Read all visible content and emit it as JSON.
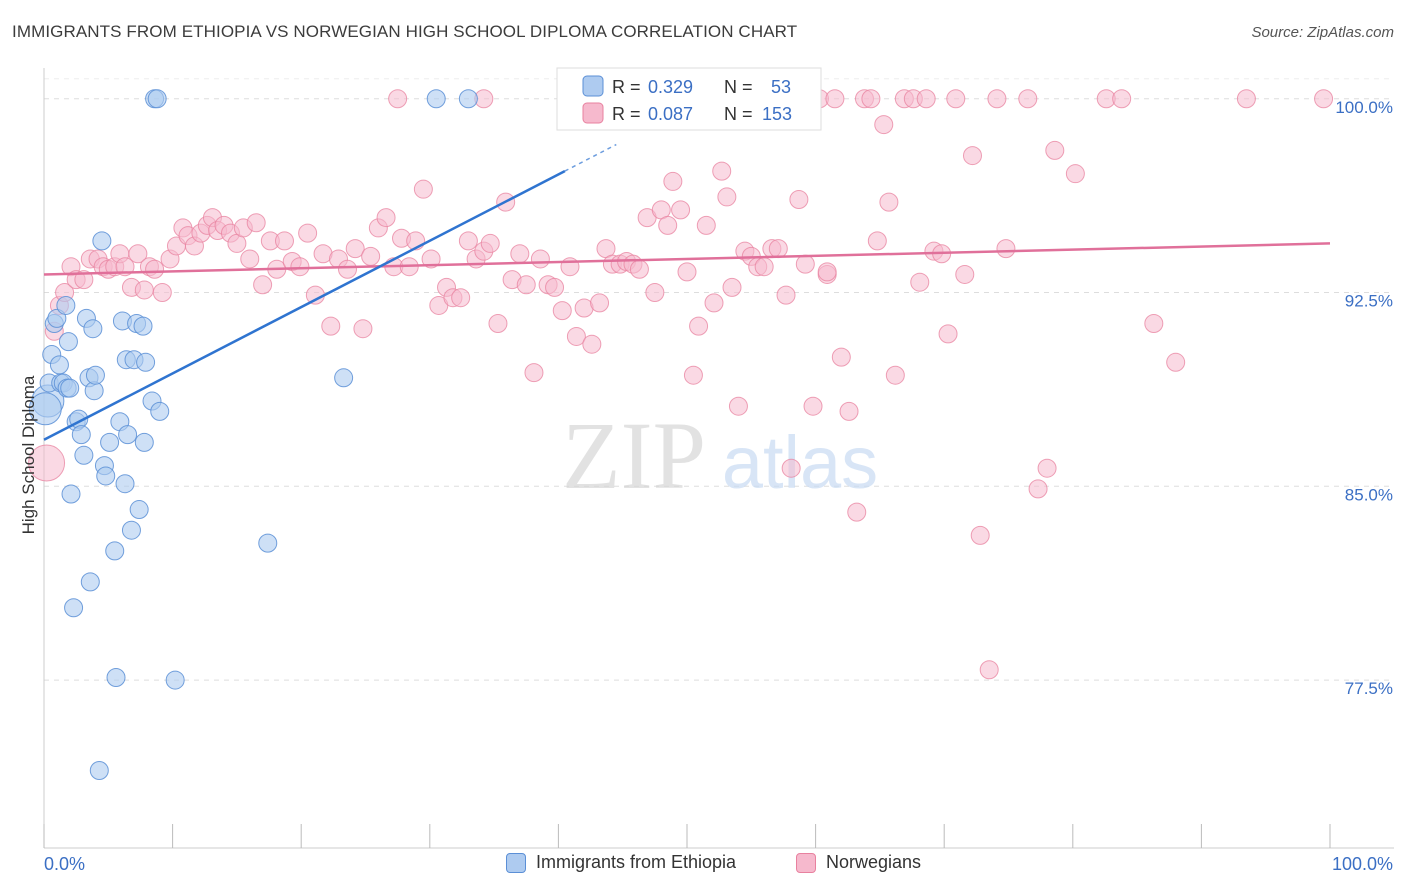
{
  "title": "IMMIGRANTS FROM ETHIOPIA VS NORWEGIAN HIGH SCHOOL DIPLOMA CORRELATION CHART",
  "source": "Source: ZipAtlas.com",
  "watermark": {
    "zip": "ZIP",
    "atlas": "atlas"
  },
  "colors": {
    "blue_fill": "#aecbf0",
    "blue_stroke": "#5b8fd6",
    "blue_line": "#2f74d0",
    "pink_fill": "#f6b9cd",
    "pink_stroke": "#e8819f",
    "pink_line": "#e0709a",
    "tick_label": "#3b6fc4",
    "grid": "#dddddd"
  },
  "legend": {
    "r_label": "R =",
    "n_label": "N =",
    "rows": [
      {
        "r": "0.329",
        "n": "53",
        "series": "blue"
      },
      {
        "r": "0.087",
        "n": "153",
        "series": "pink"
      }
    ]
  },
  "chart_data": {
    "type": "scatter",
    "title": "IMMIGRANTS FROM ETHIOPIA VS NORWEGIAN HIGH SCHOOL DIPLOMA CORRELATION CHART",
    "xlabel": "",
    "ylabel": "High School Diploma",
    "xlim": [
      0,
      100
    ],
    "ylim": [
      71.0,
      101.5
    ],
    "x_tick_labels": [
      "0.0%",
      "100.0%"
    ],
    "y_ticks": [
      77.5,
      85.0,
      92.5,
      100.0
    ],
    "y_tick_labels": [
      "77.5%",
      "85.0%",
      "92.5%",
      "100.0%"
    ],
    "grid": "horizontal dashed",
    "legend_position": "top-center",
    "series": [
      {
        "name": "Immigrants from Ethiopia",
        "color": "blue",
        "R": 0.329,
        "N": 53,
        "trend": {
          "x": [
            0,
            40.5
          ],
          "y": [
            86.8,
            97.2
          ],
          "dashed_extension_to_x": 44.5
        },
        "points": [
          [
            0.3,
            88.3
          ],
          [
            0.4,
            89.0
          ],
          [
            0.6,
            90.1
          ],
          [
            0.8,
            91.3
          ],
          [
            1.0,
            91.5
          ],
          [
            1.2,
            89.7
          ],
          [
            1.3,
            89.0
          ],
          [
            1.5,
            89.0
          ],
          [
            1.7,
            92.0
          ],
          [
            1.8,
            88.8
          ],
          [
            1.9,
            90.6
          ],
          [
            2.0,
            88.8
          ],
          [
            2.1,
            84.7
          ],
          [
            2.3,
            80.3
          ],
          [
            2.5,
            87.5
          ],
          [
            2.7,
            87.6
          ],
          [
            2.9,
            87.0
          ],
          [
            3.1,
            86.2
          ],
          [
            3.3,
            91.5
          ],
          [
            3.5,
            89.2
          ],
          [
            3.6,
            81.3
          ],
          [
            3.8,
            91.1
          ],
          [
            3.9,
            88.7
          ],
          [
            4.0,
            89.3
          ],
          [
            4.3,
            74.0
          ],
          [
            4.5,
            94.5
          ],
          [
            4.7,
            85.8
          ],
          [
            4.8,
            85.4
          ],
          [
            5.1,
            86.7
          ],
          [
            5.5,
            82.5
          ],
          [
            5.6,
            77.6
          ],
          [
            5.9,
            87.5
          ],
          [
            6.1,
            91.4
          ],
          [
            6.3,
            85.1
          ],
          [
            6.4,
            89.9
          ],
          [
            6.5,
            87.0
          ],
          [
            6.8,
            83.3
          ],
          [
            7.0,
            89.9
          ],
          [
            7.2,
            91.3
          ],
          [
            7.4,
            84.1
          ],
          [
            7.7,
            91.2
          ],
          [
            7.8,
            86.7
          ],
          [
            7.9,
            89.8
          ],
          [
            8.4,
            88.3
          ],
          [
            8.6,
            100.0
          ],
          [
            8.8,
            100.0
          ],
          [
            9.0,
            87.9
          ],
          [
            10.2,
            77.5
          ],
          [
            17.4,
            82.8
          ],
          [
            23.3,
            89.2
          ],
          [
            30.5,
            100.0
          ],
          [
            33.0,
            100.0
          ],
          [
            0.1,
            88.0
          ]
        ]
      },
      {
        "name": "Norwegians",
        "color": "pink",
        "R": 0.087,
        "N": 153,
        "trend": {
          "x": [
            0,
            100
          ],
          "y": [
            93.2,
            94.4
          ]
        },
        "points": [
          [
            0.2,
            85.9
          ],
          [
            0.8,
            91.0
          ],
          [
            1.2,
            92.0
          ],
          [
            1.6,
            92.5
          ],
          [
            2.1,
            93.5
          ],
          [
            2.5,
            93.0
          ],
          [
            3.1,
            93.0
          ],
          [
            3.6,
            93.8
          ],
          [
            4.2,
            93.8
          ],
          [
            4.6,
            93.5
          ],
          [
            5.0,
            93.4
          ],
          [
            5.5,
            93.5
          ],
          [
            5.9,
            94.0
          ],
          [
            6.3,
            93.5
          ],
          [
            6.8,
            92.7
          ],
          [
            7.3,
            94.0
          ],
          [
            7.8,
            92.6
          ],
          [
            8.2,
            93.5
          ],
          [
            8.6,
            93.4
          ],
          [
            9.2,
            92.5
          ],
          [
            9.8,
            93.8
          ],
          [
            10.3,
            94.3
          ],
          [
            10.8,
            95.0
          ],
          [
            11.2,
            94.7
          ],
          [
            11.7,
            94.3
          ],
          [
            12.2,
            94.8
          ],
          [
            12.7,
            95.1
          ],
          [
            13.1,
            95.4
          ],
          [
            13.5,
            94.9
          ],
          [
            14.0,
            95.1
          ],
          [
            14.5,
            94.8
          ],
          [
            15.0,
            94.4
          ],
          [
            15.5,
            95.0
          ],
          [
            16.0,
            93.8
          ],
          [
            16.5,
            95.2
          ],
          [
            17.0,
            92.8
          ],
          [
            17.6,
            94.5
          ],
          [
            18.1,
            93.4
          ],
          [
            18.7,
            94.5
          ],
          [
            19.3,
            93.7
          ],
          [
            19.9,
            93.5
          ],
          [
            20.5,
            94.8
          ],
          [
            21.1,
            92.4
          ],
          [
            21.7,
            94.0
          ],
          [
            22.3,
            91.2
          ],
          [
            22.9,
            93.8
          ],
          [
            23.6,
            93.4
          ],
          [
            24.2,
            94.2
          ],
          [
            24.8,
            91.1
          ],
          [
            25.4,
            93.9
          ],
          [
            26.0,
            95.0
          ],
          [
            26.6,
            95.4
          ],
          [
            27.2,
            93.5
          ],
          [
            27.8,
            94.6
          ],
          [
            28.4,
            93.5
          ],
          [
            28.9,
            94.5
          ],
          [
            29.5,
            96.5
          ],
          [
            30.1,
            93.8
          ],
          [
            30.7,
            92.0
          ],
          [
            31.3,
            92.7
          ],
          [
            31.8,
            92.3
          ],
          [
            32.4,
            92.3
          ],
          [
            33.0,
            94.5
          ],
          [
            33.6,
            93.8
          ],
          [
            34.2,
            94.1
          ],
          [
            34.7,
            94.4
          ],
          [
            35.3,
            91.3
          ],
          [
            35.9,
            96.0
          ],
          [
            36.4,
            93.0
          ],
          [
            37.0,
            94.0
          ],
          [
            37.5,
            92.8
          ],
          [
            38.1,
            89.4
          ],
          [
            38.6,
            93.8
          ],
          [
            39.2,
            92.8
          ],
          [
            39.7,
            92.7
          ],
          [
            40.3,
            91.8
          ],
          [
            40.9,
            93.5
          ],
          [
            41.4,
            90.8
          ],
          [
            42.0,
            91.9
          ],
          [
            42.6,
            90.5
          ],
          [
            43.2,
            92.1
          ],
          [
            43.7,
            94.2
          ],
          [
            44.2,
            93.6
          ],
          [
            44.8,
            93.6
          ],
          [
            45.3,
            93.7
          ],
          [
            45.8,
            93.6
          ],
          [
            46.3,
            93.4
          ],
          [
            46.9,
            95.4
          ],
          [
            47.5,
            92.5
          ],
          [
            48.0,
            95.7
          ],
          [
            48.5,
            95.1
          ],
          [
            48.9,
            96.8
          ],
          [
            49.5,
            95.7
          ],
          [
            50.0,
            93.3
          ],
          [
            50.5,
            89.3
          ],
          [
            50.9,
            91.2
          ],
          [
            51.5,
            95.1
          ],
          [
            52.1,
            92.1
          ],
          [
            52.7,
            97.2
          ],
          [
            53.1,
            96.2
          ],
          [
            53.5,
            92.7
          ],
          [
            54.0,
            88.1
          ],
          [
            54.5,
            94.1
          ],
          [
            55.0,
            93.9
          ],
          [
            55.5,
            93.5
          ],
          [
            56.0,
            93.5
          ],
          [
            56.6,
            94.2
          ],
          [
            57.1,
            94.2
          ],
          [
            57.7,
            92.4
          ],
          [
            58.1,
            85.7
          ],
          [
            58.7,
            96.1
          ],
          [
            59.2,
            93.6
          ],
          [
            59.8,
            88.1
          ],
          [
            60.3,
            100.0
          ],
          [
            60.9,
            93.2
          ],
          [
            61.5,
            100.0
          ],
          [
            62.0,
            90.0
          ],
          [
            62.6,
            87.9
          ],
          [
            63.2,
            84.0
          ],
          [
            63.8,
            100.0
          ],
          [
            64.3,
            100.0
          ],
          [
            64.8,
            94.5
          ],
          [
            65.3,
            99.0
          ],
          [
            65.7,
            96.0
          ],
          [
            66.2,
            89.3
          ],
          [
            66.9,
            100.0
          ],
          [
            67.6,
            100.0
          ],
          [
            68.1,
            92.9
          ],
          [
            68.6,
            100.0
          ],
          [
            69.2,
            94.1
          ],
          [
            69.8,
            94.0
          ],
          [
            70.3,
            90.9
          ],
          [
            70.9,
            100.0
          ],
          [
            71.6,
            93.2
          ],
          [
            72.2,
            97.8
          ],
          [
            72.8,
            83.1
          ],
          [
            73.5,
            77.9
          ],
          [
            74.1,
            100.0
          ],
          [
            74.8,
            94.2
          ],
          [
            76.5,
            100.0
          ],
          [
            77.3,
            84.9
          ],
          [
            78.0,
            85.7
          ],
          [
            78.6,
            98.0
          ],
          [
            80.2,
            97.1
          ],
          [
            82.6,
            100.0
          ],
          [
            83.8,
            100.0
          ],
          [
            86.3,
            91.3
          ],
          [
            88.0,
            89.8
          ],
          [
            93.5,
            100.0
          ],
          [
            99.5,
            100.0
          ],
          [
            27.5,
            100.0
          ],
          [
            34.2,
            100.0
          ],
          [
            60.9,
            93.3
          ]
        ]
      }
    ]
  },
  "bottom_legend": [
    {
      "label": "Immigrants from Ethiopia",
      "series": "blue"
    },
    {
      "label": "Norwegians",
      "series": "pink"
    }
  ]
}
